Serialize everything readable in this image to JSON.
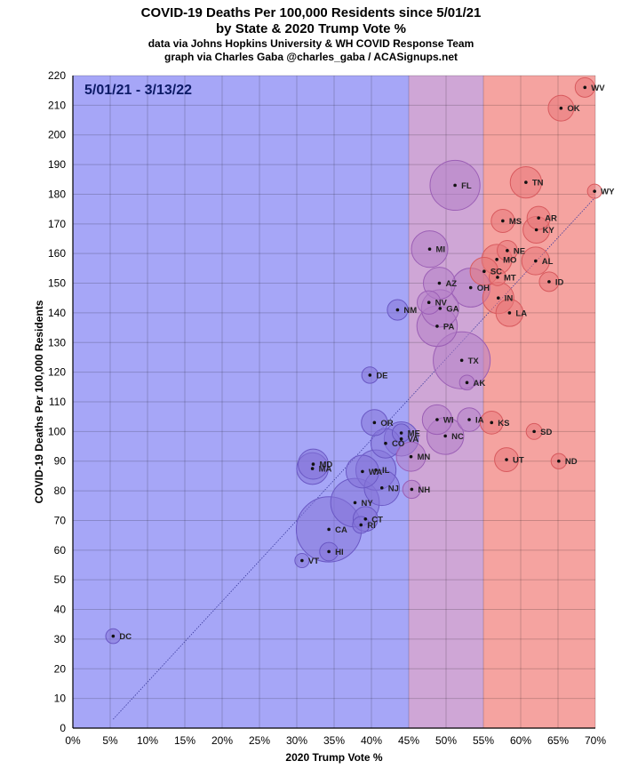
{
  "titles": {
    "line1": "COVID-19 Deaths Per 100,000 Residents since 5/01/21",
    "line2": "by State & 2020 Trump Vote %",
    "line3": "data via Johns Hopkins University & WH COVID Response Team",
    "line4": "graph via Charles Gaba @charles_gaba / ACASignups.net"
  },
  "chart_data": {
    "type": "scatter",
    "title": "COVID-19 Deaths Per 100,000 Residents since 5/01/21",
    "subtitle": "by State & 2020 Trump Vote %",
    "xlabel": "2020 Trump Vote %",
    "ylabel": "COVID-19 Deaths Per 100,000 Residents",
    "annotation": "5/01/21 - 3/13/22",
    "xlim": [
      0,
      70
    ],
    "ylim": [
      0,
      220
    ],
    "x_ticks": [
      "0%",
      "5%",
      "10%",
      "15%",
      "20%",
      "25%",
      "30%",
      "35%",
      "40%",
      "45%",
      "50%",
      "55%",
      "60%",
      "65%",
      "70%"
    ],
    "y_ticks": [
      "0",
      "10",
      "20",
      "30",
      "40",
      "50",
      "60",
      "70",
      "80",
      "90",
      "100",
      "110",
      "120",
      "130",
      "140",
      "150",
      "160",
      "170",
      "180",
      "190",
      "200",
      "210",
      "220"
    ],
    "bands": [
      {
        "from": 0,
        "to": 45,
        "color": "#a6a6f7"
      },
      {
        "from": 45,
        "to": 55,
        "color": "#cfa6d6"
      },
      {
        "from": 55,
        "to": 70,
        "color": "#f5a3a0"
      }
    ],
    "trendline": {
      "x": [
        5.4,
        70
      ],
      "y": [
        3,
        179
      ],
      "color": "#3b3b9e"
    },
    "bubble_colors": {
      "blue": "#8575d8",
      "purple": "#b57fc9",
      "red": "#e8787a"
    },
    "points": [
      {
        "label": "WV",
        "x": 68.6,
        "y": 216,
        "pop": 1.8,
        "color": "red"
      },
      {
        "label": "OK",
        "x": 65.4,
        "y": 209,
        "pop": 4.0,
        "color": "red"
      },
      {
        "label": "WY",
        "x": 69.9,
        "y": 181,
        "pop": 0.6,
        "color": "red"
      },
      {
        "label": "TN",
        "x": 60.7,
        "y": 184,
        "pop": 6.9,
        "color": "red"
      },
      {
        "label": "FL",
        "x": 51.2,
        "y": 183,
        "pop": 21.5,
        "color": "purple"
      },
      {
        "label": "AR",
        "x": 62.4,
        "y": 172,
        "pop": 3.0,
        "color": "red"
      },
      {
        "label": "MS",
        "x": 57.6,
        "y": 171,
        "pop": 3.0,
        "color": "red"
      },
      {
        "label": "KY",
        "x": 62.1,
        "y": 168,
        "pop": 4.5,
        "color": "red"
      },
      {
        "label": "MI",
        "x": 47.8,
        "y": 161.5,
        "pop": 10.1,
        "color": "purple"
      },
      {
        "label": "NE",
        "x": 58.2,
        "y": 161,
        "pop": 2.0,
        "color": "red"
      },
      {
        "label": "MO",
        "x": 56.8,
        "y": 158,
        "pop": 6.2,
        "color": "red"
      },
      {
        "label": "AL",
        "x": 62.0,
        "y": 157.5,
        "pop": 5.0,
        "color": "red"
      },
      {
        "label": "SC",
        "x": 55.1,
        "y": 154,
        "pop": 5.1,
        "color": "red"
      },
      {
        "label": "MT",
        "x": 56.9,
        "y": 152,
        "pop": 1.1,
        "color": "red"
      },
      {
        "label": "ID",
        "x": 63.8,
        "y": 150.5,
        "pop": 1.8,
        "color": "red"
      },
      {
        "label": "AZ",
        "x": 49.1,
        "y": 150,
        "pop": 7.2,
        "color": "purple"
      },
      {
        "label": "OH",
        "x": 53.3,
        "y": 148.5,
        "pop": 11.8,
        "color": "purple"
      },
      {
        "label": "IN",
        "x": 57.0,
        "y": 145,
        "pop": 6.8,
        "color": "red"
      },
      {
        "label": "NV",
        "x": 47.7,
        "y": 143.5,
        "pop": 3.1,
        "color": "purple"
      },
      {
        "label": "GA",
        "x": 49.2,
        "y": 141.5,
        "pop": 10.7,
        "color": "purple"
      },
      {
        "label": "NM",
        "x": 43.5,
        "y": 141,
        "pop": 2.1,
        "color": "blue"
      },
      {
        "label": "LA",
        "x": 58.5,
        "y": 140,
        "pop": 4.7,
        "color": "red"
      },
      {
        "label": "PA",
        "x": 48.8,
        "y": 135.5,
        "pop": 13.0,
        "color": "purple"
      },
      {
        "label": "TX",
        "x": 52.1,
        "y": 124,
        "pop": 29.1,
        "color": "purple"
      },
      {
        "label": "DE",
        "x": 39.8,
        "y": 119,
        "pop": 1.0,
        "color": "blue"
      },
      {
        "label": "AK",
        "x": 52.8,
        "y": 116.5,
        "pop": 0.7,
        "color": "purple"
      },
      {
        "label": "WI",
        "x": 48.8,
        "y": 104,
        "pop": 5.9,
        "color": "purple"
      },
      {
        "label": "IA",
        "x": 53.1,
        "y": 104,
        "pop": 3.2,
        "color": "purple"
      },
      {
        "label": "OR",
        "x": 40.4,
        "y": 103,
        "pop": 4.2,
        "color": "blue"
      },
      {
        "label": "KS",
        "x": 56.1,
        "y": 103,
        "pop": 2.9,
        "color": "red"
      },
      {
        "label": "SD",
        "x": 61.8,
        "y": 100,
        "pop": 0.9,
        "color": "red"
      },
      {
        "label": "ME",
        "x": 44.0,
        "y": 99.5,
        "pop": 1.4,
        "color": "blue"
      },
      {
        "label": "NC",
        "x": 49.9,
        "y": 98.5,
        "pop": 10.4,
        "color": "purple"
      },
      {
        "label": "VA",
        "x": 44.0,
        "y": 97.5,
        "pop": 8.6,
        "color": "blue"
      },
      {
        "label": "CO",
        "x": 41.9,
        "y": 96,
        "pop": 5.8,
        "color": "blue"
      },
      {
        "label": "MN",
        "x": 45.3,
        "y": 91.5,
        "pop": 5.7,
        "color": "purple"
      },
      {
        "label": "UT",
        "x": 58.1,
        "y": 90.5,
        "pop": 3.3,
        "color": "red"
      },
      {
        "label": "ND",
        "x": 65.1,
        "y": 90,
        "pop": 0.8,
        "color": "red"
      },
      {
        "label": "MD",
        "x": 32.2,
        "y": 89,
        "pop": 6.2,
        "color": "blue"
      },
      {
        "label": "MA",
        "x": 32.1,
        "y": 87.5,
        "pop": 7.0,
        "color": "blue"
      },
      {
        "label": "IL",
        "x": 40.6,
        "y": 87,
        "pop": 12.8,
        "color": "blue"
      },
      {
        "label": "WA",
        "x": 38.8,
        "y": 86.5,
        "pop": 7.7,
        "color": "blue"
      },
      {
        "label": "NJ",
        "x": 41.4,
        "y": 81,
        "pop": 9.3,
        "color": "blue"
      },
      {
        "label": "NH",
        "x": 45.4,
        "y": 80.5,
        "pop": 1.4,
        "color": "purple"
      },
      {
        "label": "NY",
        "x": 37.8,
        "y": 76,
        "pop": 20.2,
        "color": "blue"
      },
      {
        "label": "CT",
        "x": 39.2,
        "y": 70.5,
        "pop": 3.6,
        "color": "blue"
      },
      {
        "label": "RI",
        "x": 38.6,
        "y": 68.5,
        "pop": 1.1,
        "color": "blue"
      },
      {
        "label": "CA",
        "x": 34.3,
        "y": 67,
        "pop": 39.5,
        "color": "blue"
      },
      {
        "label": "HI",
        "x": 34.3,
        "y": 59.5,
        "pop": 1.5,
        "color": "blue"
      },
      {
        "label": "VT",
        "x": 30.7,
        "y": 56.5,
        "pop": 0.6,
        "color": "blue"
      },
      {
        "label": "DC",
        "x": 5.4,
        "y": 31,
        "pop": 0.7,
        "color": "blue"
      }
    ]
  }
}
